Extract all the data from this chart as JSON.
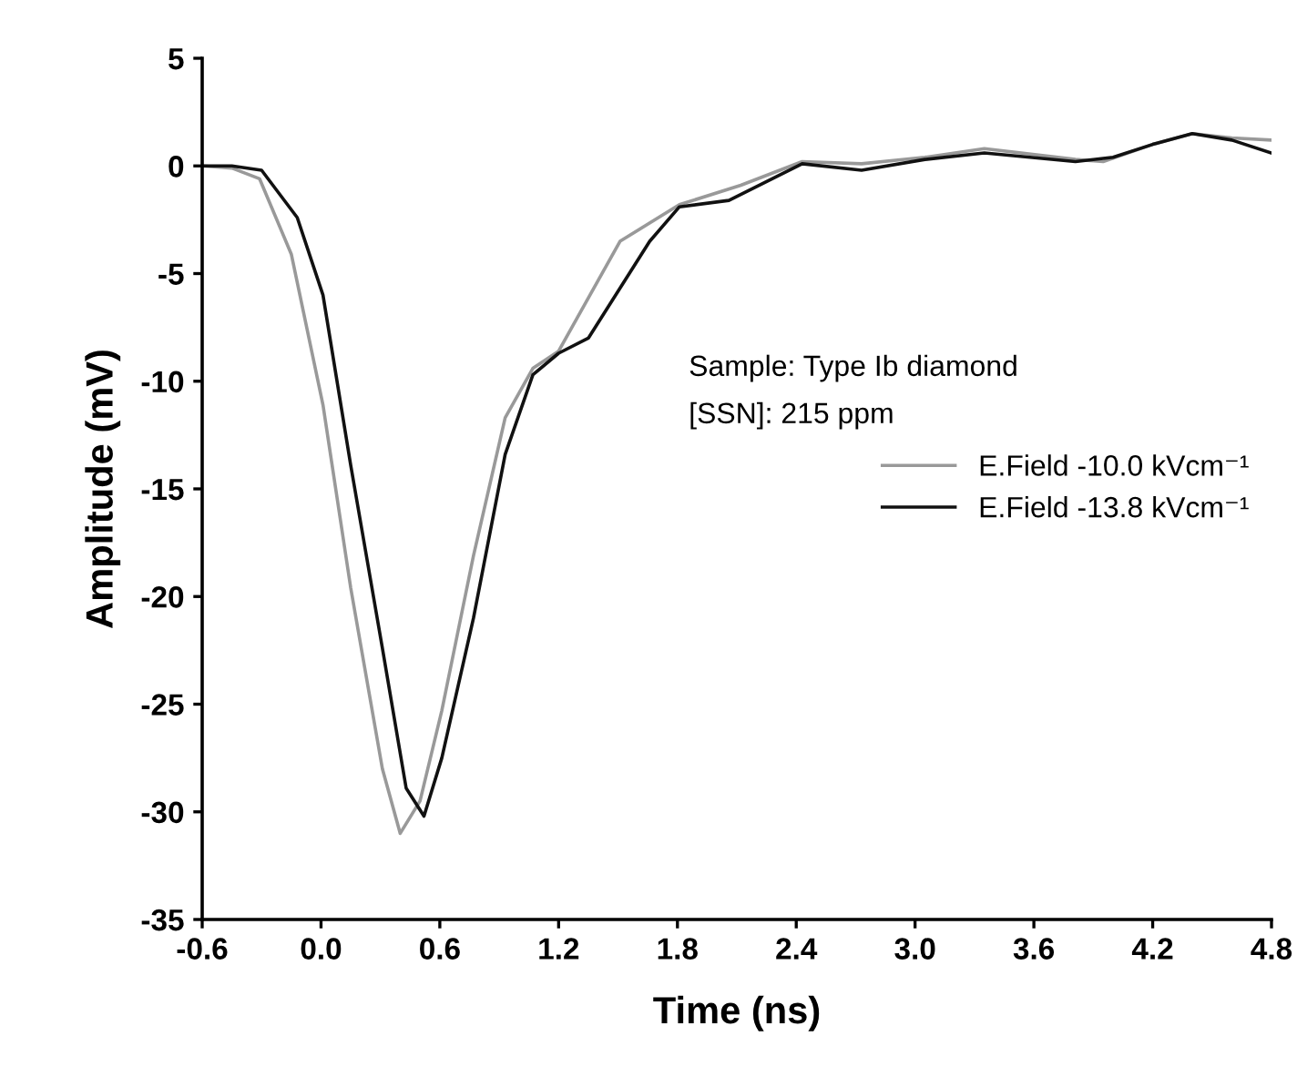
{
  "chart_data": {
    "type": "line",
    "xlabel": "Time (ns)",
    "ylabel": "Amplitude (mV)",
    "xlim": [
      -0.6,
      4.8
    ],
    "xticks": [
      -0.6,
      {
        "value": 0,
        "label": "0.0"
      },
      0.6,
      1.2,
      1.8,
      2.4,
      {
        "value": 3,
        "label": "3.0"
      },
      3.6,
      4.2,
      4.8
    ],
    "ylim": [
      -35,
      5
    ],
    "yticks": [
      -35,
      -30,
      -25,
      -20,
      -15,
      -10,
      -5,
      0,
      5
    ],
    "grid": false,
    "legend": "right",
    "marker": "none",
    "line_style": "solid",
    "annotations": [
      "Sample: Type Ib diamond",
      "[SSN]: 215 ppm"
    ],
    "series": [
      {
        "name": "E.Field -10.0 kVcm⁻¹",
        "color": "#999999",
        "x": [
          -0.6,
          -0.45,
          -0.31,
          -0.15,
          0.01,
          0.15,
          0.31,
          0.4,
          0.5,
          0.61,
          0.77,
          0.93,
          1.07,
          1.2,
          1.51,
          1.81,
          2.12,
          2.43,
          2.73,
          3.05,
          3.35,
          3.81,
          3.95,
          4.2,
          4.4,
          4.6,
          4.8
        ],
        "values": [
          0,
          -0.1,
          -0.6,
          -4.1,
          -11.1,
          -19.6,
          -28,
          -31,
          -29.5,
          -25.3,
          -18.1,
          -11.7,
          -9.4,
          -8.6,
          -3.5,
          -1.8,
          -0.9,
          0.2,
          0.1,
          0.4,
          0.8,
          0.3,
          0.2,
          1.0,
          1.5,
          1.3,
          1.2
        ]
      },
      {
        "name": "E.Field -13.8 kVcm⁻¹",
        "color": "#111111",
        "x": [
          -0.6,
          -0.45,
          -0.3,
          -0.12,
          0.01,
          0.15,
          0.31,
          0.43,
          0.52,
          0.61,
          0.77,
          0.93,
          1.07,
          1.2,
          1.35,
          1.66,
          1.81,
          2.06,
          2.43,
          2.73,
          3.05,
          3.35,
          3.81,
          4.0,
          4.2,
          4.4,
          4.6,
          4.8
        ],
        "values": [
          0,
          0,
          -0.2,
          -2.4,
          -6.0,
          -13.9,
          -22.4,
          -28.9,
          -30.2,
          -27.5,
          -21,
          -13.4,
          -9.7,
          -8.7,
          -8.0,
          -3.5,
          -1.9,
          -1.6,
          0.1,
          -0.2,
          0.3,
          0.6,
          0.2,
          0.4,
          1.0,
          1.5,
          1.2,
          0.6
        ]
      }
    ]
  }
}
